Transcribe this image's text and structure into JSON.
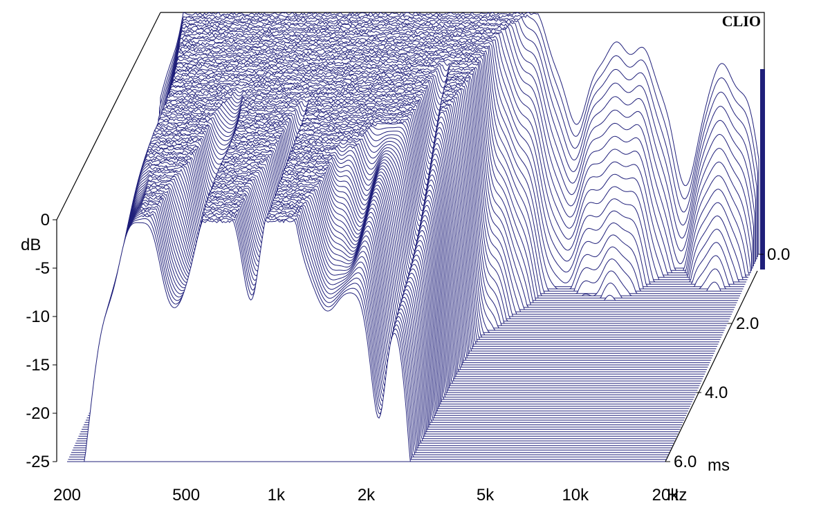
{
  "chart_data": {
    "type": "waterfall",
    "title": "",
    "brand": "CLIO",
    "x_axis": {
      "scale": "log",
      "range": [
        200,
        20000
      ],
      "ticks": [
        {
          "value": 200,
          "label": "200"
        },
        {
          "value": 500,
          "label": "500"
        },
        {
          "value": 1000,
          "label": "1k"
        },
        {
          "value": 2000,
          "label": "2k"
        },
        {
          "value": 5000,
          "label": "5k"
        },
        {
          "value": 10000,
          "label": "10k"
        },
        {
          "value": 20000,
          "label": "20k"
        }
      ],
      "unit": "Hz"
    },
    "y_axis": {
      "range": [
        -25,
        0
      ],
      "ticks": [
        {
          "value": 0,
          "label": "0"
        },
        {
          "value": -5,
          "label": "-5"
        },
        {
          "value": -10,
          "label": "-10"
        },
        {
          "value": -15,
          "label": "-15"
        },
        {
          "value": -20,
          "label": "-20"
        },
        {
          "value": -25,
          "label": "-25"
        }
      ],
      "unit": "dB"
    },
    "z_axis": {
      "range": [
        0,
        6
      ],
      "ticks": [
        {
          "value": 0,
          "label": "0.0"
        },
        {
          "value": 2,
          "label": "2.0"
        },
        {
          "value": 4,
          "label": "4.0"
        },
        {
          "value": 6,
          "label": "6.0"
        }
      ],
      "unit": "ms"
    },
    "slice_count": 91,
    "peaks": [
      {
        "f": 300,
        "level": 14,
        "bw": 0.2,
        "decay": 0.5
      },
      {
        "f": 340,
        "level": 4,
        "bw": 0.08,
        "decay": 3.0
      },
      {
        "f": 620,
        "level": 15,
        "bw": 0.1,
        "decay": 0.6
      },
      {
        "f": 590,
        "level": 8,
        "bw": 0.05,
        "decay": 3.6
      },
      {
        "f": 700,
        "level": 6,
        "bw": 0.045,
        "decay": 2.6
      },
      {
        "f": 950,
        "level": 12,
        "bw": 0.045,
        "decay": 1.8
      },
      {
        "f": 1000,
        "level": 7,
        "bw": 0.035,
        "decay": 5.5
      },
      {
        "f": 1150,
        "level": 10,
        "bw": 0.04,
        "decay": 3.2
      },
      {
        "f": 1400,
        "level": 10,
        "bw": 0.04,
        "decay": 2.0
      },
      {
        "f": 1600,
        "level": 12,
        "bw": 0.05,
        "decay": 1.6
      },
      {
        "f": 1850,
        "level": 9,
        "bw": 0.04,
        "decay": 2.1
      },
      {
        "f": 2300,
        "level": 14,
        "bw": 0.08,
        "decay": 0.6
      },
      {
        "f": 2500,
        "level": 6,
        "bw": 0.03,
        "decay": 1.5
      },
      {
        "f": 3000,
        "level": 15,
        "bw": 0.1,
        "decay": 0.45
      },
      {
        "f": 7200,
        "level": 20,
        "bw": 0.1,
        "decay": 0.36
      },
      {
        "f": 15000,
        "level": 22,
        "bw": 0.08,
        "decay": 0.34
      }
    ],
    "bandpass_low_hz": 230,
    "notch": {
      "f": 12000,
      "depth": 7,
      "bw": 0.04
    },
    "floor_db": -25
  }
}
